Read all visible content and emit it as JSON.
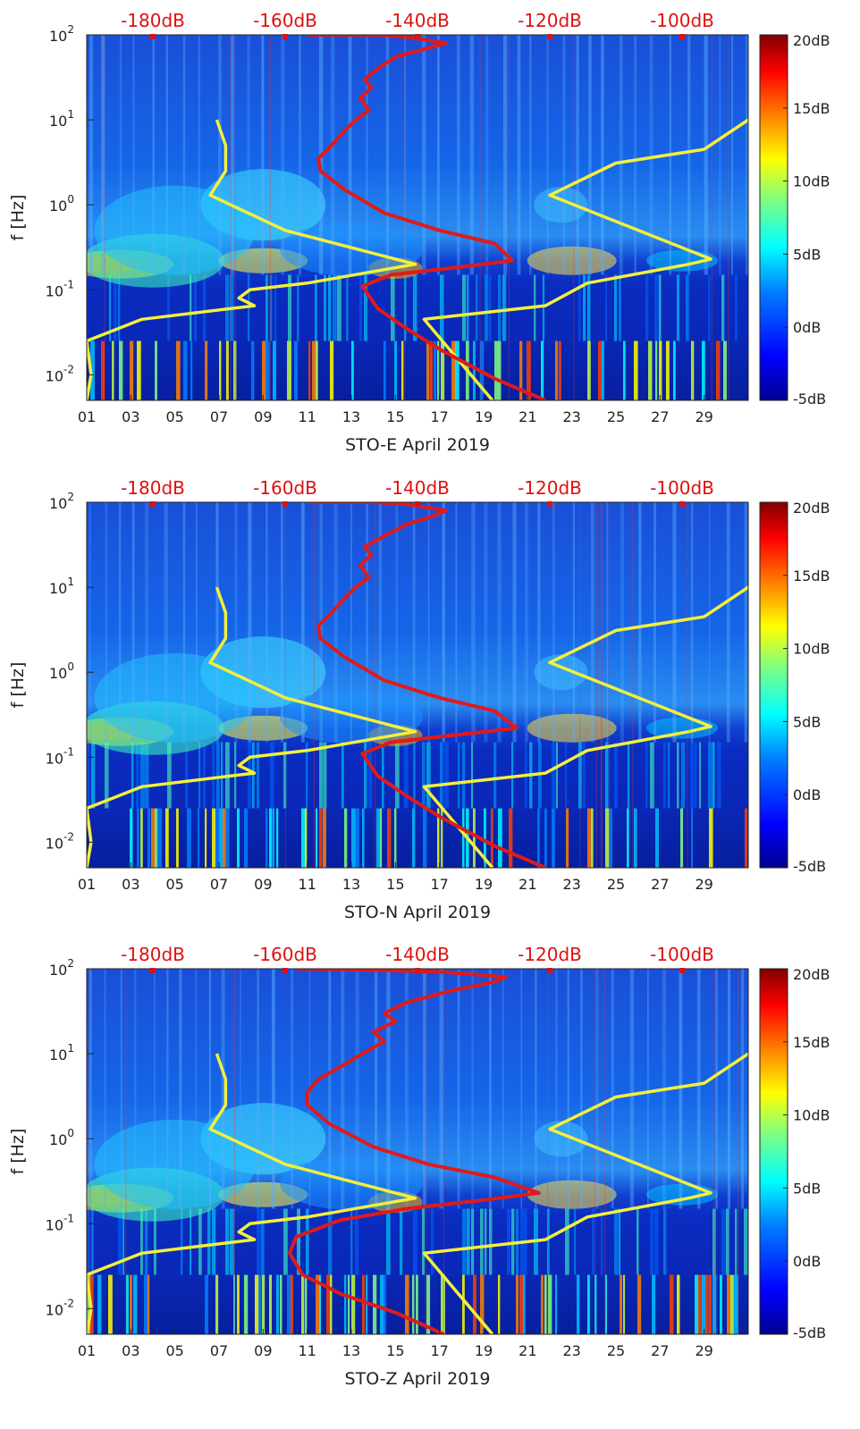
{
  "colors": {
    "red_curve": "#e01a1a",
    "yellow_curve": "#f4f03a",
    "top_axis_text": "#e01010"
  },
  "chart_data": [
    {
      "type": "heatmap",
      "title": "",
      "xlabel": "STO-E April 2019",
      "ylabel": "f [Hz]",
      "x_ticks": [
        "01",
        "03",
        "05",
        "07",
        "09",
        "11",
        "13",
        "15",
        "17",
        "19",
        "21",
        "23",
        "25",
        "27",
        "29"
      ],
      "x_range_days": [
        1,
        31
      ],
      "y_scale": "log",
      "y_range_hz": [
        0.005,
        100
      ],
      "y_ticks": [
        {
          "base": "10",
          "exp": "-2"
        },
        {
          "base": "10",
          "exp": "-1"
        },
        {
          "base": "10",
          "exp": "0"
        },
        {
          "base": "10",
          "exp": "1"
        },
        {
          "base": "10",
          "exp": "2"
        }
      ],
      "top_axis_labels": [
        "-180dB",
        "-160dB",
        "-140dB",
        "-120dB",
        "-100dB"
      ],
      "top_axis_range_db": [
        -190,
        -90
      ],
      "colorbar": {
        "min_db": -5,
        "max_db": 20,
        "ticks": [
          "20dB",
          "15dB",
          "10dB",
          "5dB",
          "0dB",
          "-5dB"
        ]
      },
      "colorbar_colors": [
        "#00008f",
        "#0000ff",
        "#0080ff",
        "#00ffff",
        "#80ff80",
        "#ffff00",
        "#ff8000",
        "#ff0000",
        "#800000"
      ],
      "series": [
        {
          "name": "yellow-model-low",
          "color": "yellow",
          "points": [
            [
              1.0,
              0.005
            ],
            [
              1.2,
              0.01
            ],
            [
              1.05,
              0.02
            ],
            [
              1.0,
              0.025
            ],
            [
              3.5,
              0.045
            ],
            [
              8.6,
              0.065
            ],
            [
              7.9,
              0.08
            ],
            [
              8.4,
              0.1
            ],
            [
              11.0,
              0.12
            ],
            [
              15.9,
              0.2
            ],
            [
              10.0,
              0.5
            ],
            [
              6.6,
              1.3
            ],
            [
              7.3,
              2.5
            ],
            [
              7.3,
              5
            ],
            [
              6.9,
              10
            ]
          ]
        },
        {
          "name": "yellow-model-high",
          "color": "yellow",
          "points": [
            [
              19.4,
              0.005
            ],
            [
              16.3,
              0.045
            ],
            [
              21.8,
              0.065
            ],
            [
              23.7,
              0.12
            ],
            [
              28.3,
              0.2
            ],
            [
              29.3,
              0.23
            ],
            [
              22.0,
              1.3
            ],
            [
              25.0,
              3.1
            ],
            [
              29.0,
              4.5
            ],
            [
              31.0,
              10
            ]
          ]
        },
        {
          "name": "red-noise-curve",
          "color": "red",
          "points": [
            [
              21.8,
              0.005
            ],
            [
              19.5,
              0.009
            ],
            [
              17.0,
              0.02
            ],
            [
              15.5,
              0.035
            ],
            [
              14.2,
              0.06
            ],
            [
              13.5,
              0.11
            ],
            [
              14.8,
              0.15
            ],
            [
              17.5,
              0.18
            ],
            [
              20.3,
              0.22
            ],
            [
              19.5,
              0.35
            ],
            [
              17.0,
              0.5
            ],
            [
              14.5,
              0.8
            ],
            [
              12.7,
              1.5
            ],
            [
              11.6,
              2.5
            ],
            [
              11.5,
              3.5
            ],
            [
              12.1,
              5
            ],
            [
              12.6,
              7
            ],
            [
              13.2,
              10
            ],
            [
              13.8,
              13
            ],
            [
              13.4,
              18
            ],
            [
              13.9,
              24
            ],
            [
              13.6,
              30
            ],
            [
              14.2,
              40
            ],
            [
              15.0,
              55
            ],
            [
              16.5,
              70
            ],
            [
              17.3,
              80
            ],
            [
              15.5,
              95
            ],
            [
              14.0,
              100
            ],
            [
              11.0,
              100
            ]
          ]
        }
      ]
    },
    {
      "type": "heatmap",
      "title": "",
      "xlabel": "STO-N April 2019",
      "ylabel": "f [Hz]",
      "x_ticks": [
        "01",
        "03",
        "05",
        "07",
        "09",
        "11",
        "13",
        "15",
        "17",
        "19",
        "21",
        "23",
        "25",
        "27",
        "29"
      ],
      "x_range_days": [
        1,
        31
      ],
      "y_scale": "log",
      "y_range_hz": [
        0.005,
        100
      ],
      "y_ticks": [
        {
          "base": "10",
          "exp": "-2"
        },
        {
          "base": "10",
          "exp": "-1"
        },
        {
          "base": "10",
          "exp": "0"
        },
        {
          "base": "10",
          "exp": "1"
        },
        {
          "base": "10",
          "exp": "2"
        }
      ],
      "top_axis_labels": [
        "-180dB",
        "-160dB",
        "-140dB",
        "-120dB",
        "-100dB"
      ],
      "top_axis_range_db": [
        -190,
        -90
      ],
      "colorbar": {
        "min_db": -5,
        "max_db": 20,
        "ticks": [
          "20dB",
          "15dB",
          "10dB",
          "5dB",
          "0dB",
          "-5dB"
        ]
      },
      "colorbar_colors": [
        "#00008f",
        "#0000ff",
        "#0080ff",
        "#00ffff",
        "#80ff80",
        "#ffff00",
        "#ff8000",
        "#ff0000",
        "#800000"
      ],
      "series": [
        {
          "name": "yellow-model-low",
          "color": "yellow",
          "points": [
            [
              1.0,
              0.005
            ],
            [
              1.2,
              0.01
            ],
            [
              1.05,
              0.02
            ],
            [
              1.0,
              0.025
            ],
            [
              3.5,
              0.045
            ],
            [
              8.6,
              0.065
            ],
            [
              7.9,
              0.08
            ],
            [
              8.4,
              0.1
            ],
            [
              11.0,
              0.12
            ],
            [
              15.9,
              0.2
            ],
            [
              10.0,
              0.5
            ],
            [
              6.6,
              1.3
            ],
            [
              7.3,
              2.5
            ],
            [
              7.3,
              5
            ],
            [
              6.9,
              10
            ]
          ]
        },
        {
          "name": "yellow-model-high",
          "color": "yellow",
          "points": [
            [
              19.4,
              0.005
            ],
            [
              16.3,
              0.045
            ],
            [
              21.8,
              0.065
            ],
            [
              23.7,
              0.12
            ],
            [
              28.3,
              0.2
            ],
            [
              29.3,
              0.23
            ],
            [
              22.0,
              1.3
            ],
            [
              25.0,
              3.1
            ],
            [
              29.0,
              4.5
            ],
            [
              31.0,
              10
            ]
          ]
        },
        {
          "name": "red-noise-curve",
          "color": "red",
          "points": [
            [
              21.8,
              0.005
            ],
            [
              19.5,
              0.009
            ],
            [
              17.0,
              0.02
            ],
            [
              15.5,
              0.035
            ],
            [
              14.2,
              0.06
            ],
            [
              13.5,
              0.11
            ],
            [
              14.8,
              0.15
            ],
            [
              17.5,
              0.18
            ],
            [
              20.5,
              0.22
            ],
            [
              19.5,
              0.35
            ],
            [
              17.0,
              0.5
            ],
            [
              14.5,
              0.8
            ],
            [
              12.7,
              1.5
            ],
            [
              11.6,
              2.5
            ],
            [
              11.5,
              3.5
            ],
            [
              12.1,
              5
            ],
            [
              12.6,
              7
            ],
            [
              13.2,
              10
            ],
            [
              13.8,
              13
            ],
            [
              13.4,
              18
            ],
            [
              13.9,
              24
            ],
            [
              13.6,
              30
            ],
            [
              14.5,
              40
            ],
            [
              15.5,
              55
            ],
            [
              16.8,
              70
            ],
            [
              17.3,
              80
            ],
            [
              15.5,
              95
            ],
            [
              14.0,
              100
            ],
            [
              11.0,
              100
            ]
          ]
        }
      ]
    },
    {
      "type": "heatmap",
      "title": "",
      "xlabel": "STO-Z April 2019",
      "ylabel": "f [Hz]",
      "x_ticks": [
        "01",
        "03",
        "05",
        "07",
        "09",
        "11",
        "13",
        "15",
        "17",
        "19",
        "21",
        "23",
        "25",
        "27",
        "29"
      ],
      "x_range_days": [
        1,
        31
      ],
      "y_scale": "log",
      "y_range_hz": [
        0.005,
        100
      ],
      "y_ticks": [
        {
          "base": "10",
          "exp": "-2"
        },
        {
          "base": "10",
          "exp": "-1"
        },
        {
          "base": "10",
          "exp": "0"
        },
        {
          "base": "10",
          "exp": "1"
        },
        {
          "base": "10",
          "exp": "2"
        }
      ],
      "top_axis_labels": [
        "-180dB",
        "-160dB",
        "-140dB",
        "-120dB",
        "-100dB"
      ],
      "top_axis_range_db": [
        -190,
        -90
      ],
      "colorbar": {
        "min_db": -5,
        "max_db": 20,
        "ticks": [
          "20dB",
          "15dB",
          "10dB",
          "5dB",
          "0dB",
          "-5dB"
        ]
      },
      "colorbar_colors": [
        "#00008f",
        "#0000ff",
        "#0080ff",
        "#00ffff",
        "#80ff80",
        "#ffff00",
        "#ff8000",
        "#ff0000",
        "#800000"
      ],
      "series": [
        {
          "name": "yellow-model-low",
          "color": "yellow",
          "points": [
            [
              1.0,
              0.005
            ],
            [
              1.2,
              0.01
            ],
            [
              1.05,
              0.02
            ],
            [
              1.0,
              0.025
            ],
            [
              3.5,
              0.045
            ],
            [
              8.6,
              0.065
            ],
            [
              7.9,
              0.08
            ],
            [
              8.4,
              0.1
            ],
            [
              11.0,
              0.12
            ],
            [
              15.9,
              0.2
            ],
            [
              10.0,
              0.5
            ],
            [
              6.6,
              1.3
            ],
            [
              7.3,
              2.5
            ],
            [
              7.3,
              5
            ],
            [
              6.9,
              10
            ]
          ]
        },
        {
          "name": "yellow-model-high",
          "color": "yellow",
          "points": [
            [
              19.4,
              0.005
            ],
            [
              16.3,
              0.045
            ],
            [
              21.8,
              0.065
            ],
            [
              23.7,
              0.12
            ],
            [
              28.3,
              0.2
            ],
            [
              29.3,
              0.23
            ],
            [
              22.0,
              1.3
            ],
            [
              25.0,
              3.1
            ],
            [
              29.0,
              4.5
            ],
            [
              31.0,
              10
            ]
          ]
        },
        {
          "name": "red-noise-curve",
          "color": "red",
          "points": [
            [
              17.2,
              0.005
            ],
            [
              15.0,
              0.009
            ],
            [
              12.5,
              0.015
            ],
            [
              10.8,
              0.025
            ],
            [
              10.2,
              0.045
            ],
            [
              10.5,
              0.07
            ],
            [
              12.5,
              0.11
            ],
            [
              15.5,
              0.15
            ],
            [
              19.0,
              0.19
            ],
            [
              21.5,
              0.23
            ],
            [
              19.5,
              0.35
            ],
            [
              16.5,
              0.5
            ],
            [
              14.0,
              0.8
            ],
            [
              12.0,
              1.5
            ],
            [
              11.0,
              2.5
            ],
            [
              11.0,
              3.5
            ],
            [
              11.5,
              5
            ],
            [
              12.5,
              7
            ],
            [
              13.5,
              10
            ],
            [
              14.5,
              14
            ],
            [
              14.0,
              18
            ],
            [
              15.0,
              24
            ],
            [
              14.5,
              30
            ],
            [
              15.5,
              40
            ],
            [
              17.5,
              55
            ],
            [
              19.5,
              70
            ],
            [
              20.0,
              80
            ],
            [
              17.0,
              92
            ],
            [
              13.0,
              98
            ],
            [
              10.5,
              100
            ]
          ]
        }
      ]
    }
  ]
}
